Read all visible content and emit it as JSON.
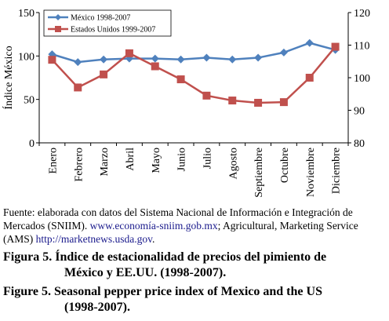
{
  "chart_data": {
    "type": "line",
    "categories": [
      "Enero",
      "Febrero",
      "Marzo",
      "Abril",
      "Mayo",
      "Junio",
      "Julio",
      "Agosto",
      "Septiembre",
      "Octubre",
      "Noviembre",
      "Diciembre"
    ],
    "ylabel": "Índice México",
    "ylim_left": [
      0,
      150
    ],
    "yticks_left": [
      "0",
      "50",
      "100",
      "150"
    ],
    "ylim_right": [
      80,
      120
    ],
    "yticks_right": [
      "80",
      "90",
      "100",
      "110",
      "120"
    ],
    "legend_position": "top-left",
    "series": [
      {
        "name": "México 1998-2007",
        "axis": "left",
        "color": "#4f81bd",
        "marker": "diamond",
        "values": [
          102,
          93,
          96,
          97,
          97,
          96,
          98,
          96,
          98,
          104,
          115,
          107
        ]
      },
      {
        "name": "Estados Unidos 1999-2007",
        "axis": "right",
        "color": "#c0504d",
        "marker": "square",
        "values": [
          105.5,
          97,
          101,
          107.5,
          103.5,
          99.5,
          94.5,
          93,
          92.3,
          92.5,
          100,
          109.5
        ]
      }
    ]
  },
  "source": {
    "text_1": "Fuente: elaborada con datos del Sistema Nacional de Información e Integración de Mercados (SNIIM). ",
    "link_1": "www.economía-sniim.gob.mx",
    "text_2": "; Agricultural, Marketing Service (AMS) ",
    "link_2": "http://marketnews.usda.gov",
    "text_3": "."
  },
  "caption_es": {
    "line1": "Figura 5. Índice de estacionalidad de precios del pimiento de",
    "line2": "México y EE.UU. (1998-2007)."
  },
  "caption_en": {
    "line1": "Figure 5. Seasonal pepper price index of Mexico and the US",
    "line2": "(1998-2007)."
  }
}
